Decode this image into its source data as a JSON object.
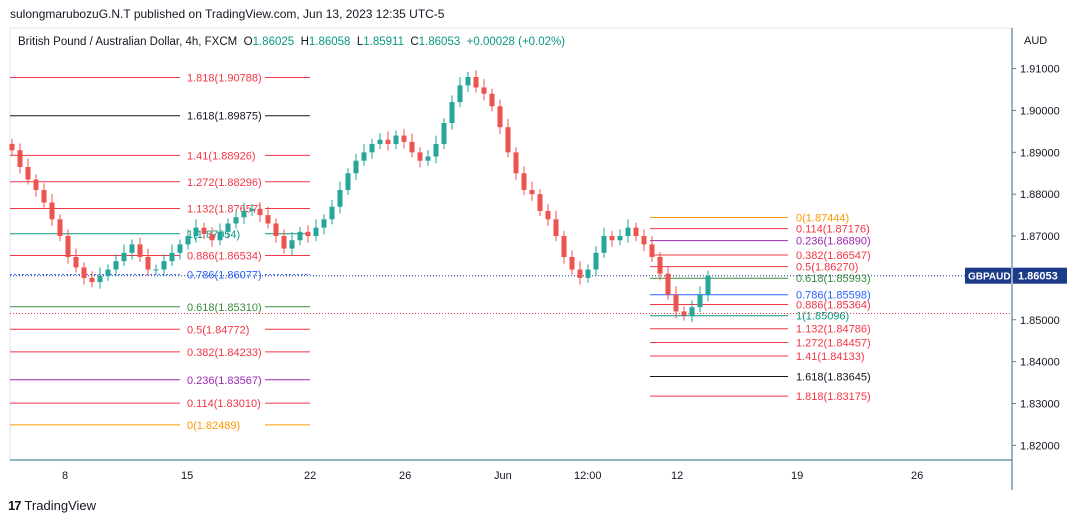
{
  "publisher_note": "sulongmarubozuG.N.T published on TradingView.com, Jun 13, 2023 12:35 UTC-5",
  "brand": {
    "logo_glyph": "17",
    "name": "TradingView"
  },
  "colors": {
    "red": "#f23645",
    "black": "#131722",
    "green": "#388e3c",
    "teal": "#089981",
    "blue": "#2962ff",
    "purple": "#9c27b0",
    "orange": "#ff9800",
    "bull": "#26a69a",
    "bear": "#ef5350",
    "axis": "#2a6a8a",
    "badge": "#1e3a8a"
  },
  "chart_data": {
    "type": "candlestick",
    "symbol_line": {
      "name": "British Pound / Australian Dollar, 4h, FXCM",
      "o_label": "O",
      "open": "1.86025",
      "h_label": "H",
      "high": "1.86058",
      "l_label": "L",
      "low": "1.85911",
      "c_label": "C",
      "close": "1.86053",
      "change": "+0.00028 (+0.02%)"
    },
    "currency": "AUD",
    "y_ticks": [
      "1.91000",
      "1.90000",
      "1.89000",
      "1.88000",
      "1.87000",
      "1.86000",
      "1.85000",
      "1.84000",
      "1.83000",
      "1.82000"
    ],
    "x_ticks": [
      "8",
      "15",
      "22",
      "26",
      "Jun",
      "12:00",
      "12",
      "19",
      "26"
    ],
    "last_price": {
      "symbol": "GBPAUD",
      "value": "1.86053"
    },
    "ylim": [
      1.8165,
      1.9197
    ],
    "fib_left": [
      {
        "label": "1.818(1.90788)",
        "level": 1.90788,
        "color": "red"
      },
      {
        "label": "1.618(1.89875)",
        "level": 1.89875,
        "color": "black"
      },
      {
        "label": "1.41(1.88926)",
        "level": 1.88926,
        "color": "red"
      },
      {
        "label": "1.272(1.88296)",
        "level": 1.88296,
        "color": "red"
      },
      {
        "label": "1.132(1.87657)",
        "level": 1.87657,
        "color": "red"
      },
      {
        "label": "1(1.87054)",
        "level": 1.87054,
        "color": "teal"
      },
      {
        "label": "0.886(1.86534)",
        "level": 1.86534,
        "color": "red"
      },
      {
        "label": "0.786(1.86077)",
        "level": 1.86077,
        "color": "blue"
      },
      {
        "label": "0.618(1.85310)",
        "level": 1.8531,
        "color": "green"
      },
      {
        "label": "0.5(1.84772)",
        "level": 1.84772,
        "color": "red"
      },
      {
        "label": "0.382(1.84233)",
        "level": 1.84233,
        "color": "red"
      },
      {
        "label": "0.236(1.83567)",
        "level": 1.83567,
        "color": "purple"
      },
      {
        "label": "0.114(1.83010)",
        "level": 1.8301,
        "color": "red"
      },
      {
        "label": "0(1.82489)",
        "level": 1.82489,
        "color": "orange"
      }
    ],
    "fib_right": [
      {
        "label": "0(1.87444)",
        "level": 1.87444,
        "color": "orange"
      },
      {
        "label": "0.114(1.87176)",
        "level": 1.87176,
        "color": "red"
      },
      {
        "label": "0.236(1.86890)",
        "level": 1.8689,
        "color": "purple"
      },
      {
        "label": "0.382(1.86547)",
        "level": 1.86547,
        "color": "red"
      },
      {
        "label": "0.5(1.86270)",
        "level": 1.8627,
        "color": "red"
      },
      {
        "label": "0.618(1.85993)",
        "level": 1.85993,
        "color": "green"
      },
      {
        "label": "0.786(1.85598)",
        "level": 1.85598,
        "color": "blue"
      },
      {
        "label": "0.886(1.85364)",
        "level": 1.85364,
        "color": "red"
      },
      {
        "label": "1(1.85096)",
        "level": 1.85096,
        "color": "teal"
      },
      {
        "label": "1.132(1.84786)",
        "level": 1.84786,
        "color": "red"
      },
      {
        "label": "1.272(1.84457)",
        "level": 1.84457,
        "color": "red"
      },
      {
        "label": "1.41(1.84133)",
        "level": 1.84133,
        "color": "red"
      },
      {
        "label": "1.618(1.83645)",
        "level": 1.83645,
        "color": "black"
      },
      {
        "label": "1.818(1.83175)",
        "level": 1.83175,
        "color": "red"
      }
    ],
    "close_path": [
      1.8905,
      1.8865,
      1.8835,
      1.881,
      1.878,
      1.874,
      1.87,
      1.865,
      1.8625,
      1.86,
      1.859,
      1.8605,
      1.862,
      1.864,
      1.866,
      1.868,
      1.865,
      1.862,
      1.862,
      1.864,
      1.866,
      1.868,
      1.87,
      1.872,
      1.8705,
      1.869,
      1.871,
      1.873,
      1.8745,
      1.876,
      1.8765,
      1.875,
      1.873,
      1.87,
      1.867,
      1.869,
      1.871,
      1.87,
      1.872,
      1.874,
      1.877,
      1.881,
      1.885,
      1.888,
      1.89,
      1.892,
      1.893,
      1.892,
      1.894,
      1.8925,
      1.89,
      1.888,
      1.889,
      1.892,
      1.897,
      1.902,
      1.906,
      1.908,
      1.9055,
      1.904,
      1.901,
      1.896,
      1.89,
      1.885,
      1.881,
      1.88,
      1.876,
      1.874,
      1.87,
      1.865,
      1.862,
      1.86,
      1.862,
      1.866,
      1.87,
      1.869,
      1.87,
      1.872,
      1.87,
      1.868,
      1.865,
      1.861,
      1.856,
      1.852,
      1.851,
      1.853,
      1.856,
      1.8605
    ]
  }
}
